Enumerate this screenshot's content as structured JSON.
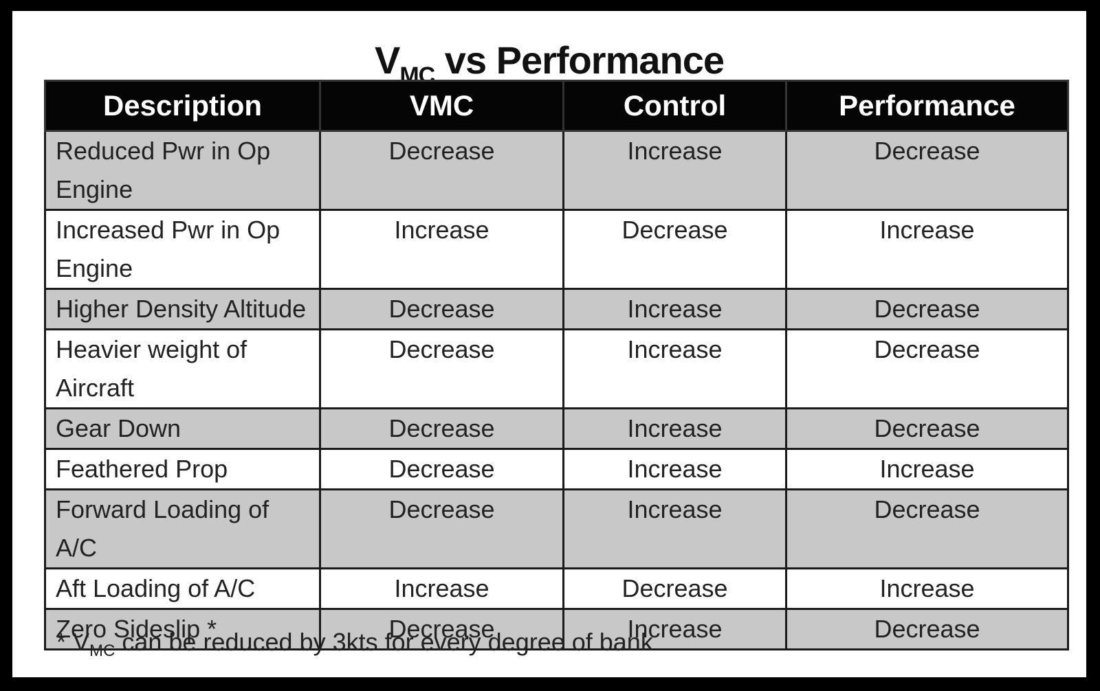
{
  "title": {
    "main": "V",
    "sub": "MC",
    "rest": " vs Performance"
  },
  "table": {
    "headers": [
      "Description",
      "VMC",
      "Control",
      "Performance"
    ],
    "rows": [
      [
        "Reduced Pwr in Op Engine",
        "Decrease",
        "Increase",
        "Decrease"
      ],
      [
        "Increased Pwr in Op Engine",
        "Increase",
        "Decrease",
        "Increase"
      ],
      [
        "Higher Density Altitude",
        "Decrease",
        "Increase",
        "Decrease"
      ],
      [
        "Heavier weight of Aircraft",
        "Decrease",
        "Increase",
        "Decrease"
      ],
      [
        "Gear Down",
        "Decrease",
        "Increase",
        "Decrease"
      ],
      [
        "Feathered Prop",
        "Decrease",
        "Increase",
        "Increase"
      ],
      [
        "Forward Loading of A/C",
        "Decrease",
        "Increase",
        "Decrease"
      ],
      [
        "Aft Loading of A/C",
        "Increase",
        "Decrease",
        "Increase"
      ],
      [
        "Zero Sideslip *",
        "Decrease",
        "Increase",
        "Decrease"
      ]
    ]
  },
  "footnote": {
    "prefix": "* V",
    "sub": "MC",
    "rest": " can be reduced by 3kts for every degree of bank"
  },
  "colors": {
    "header_bg": "#050505",
    "shaded_row": "#c8c8c8",
    "frame": "#000000"
  }
}
